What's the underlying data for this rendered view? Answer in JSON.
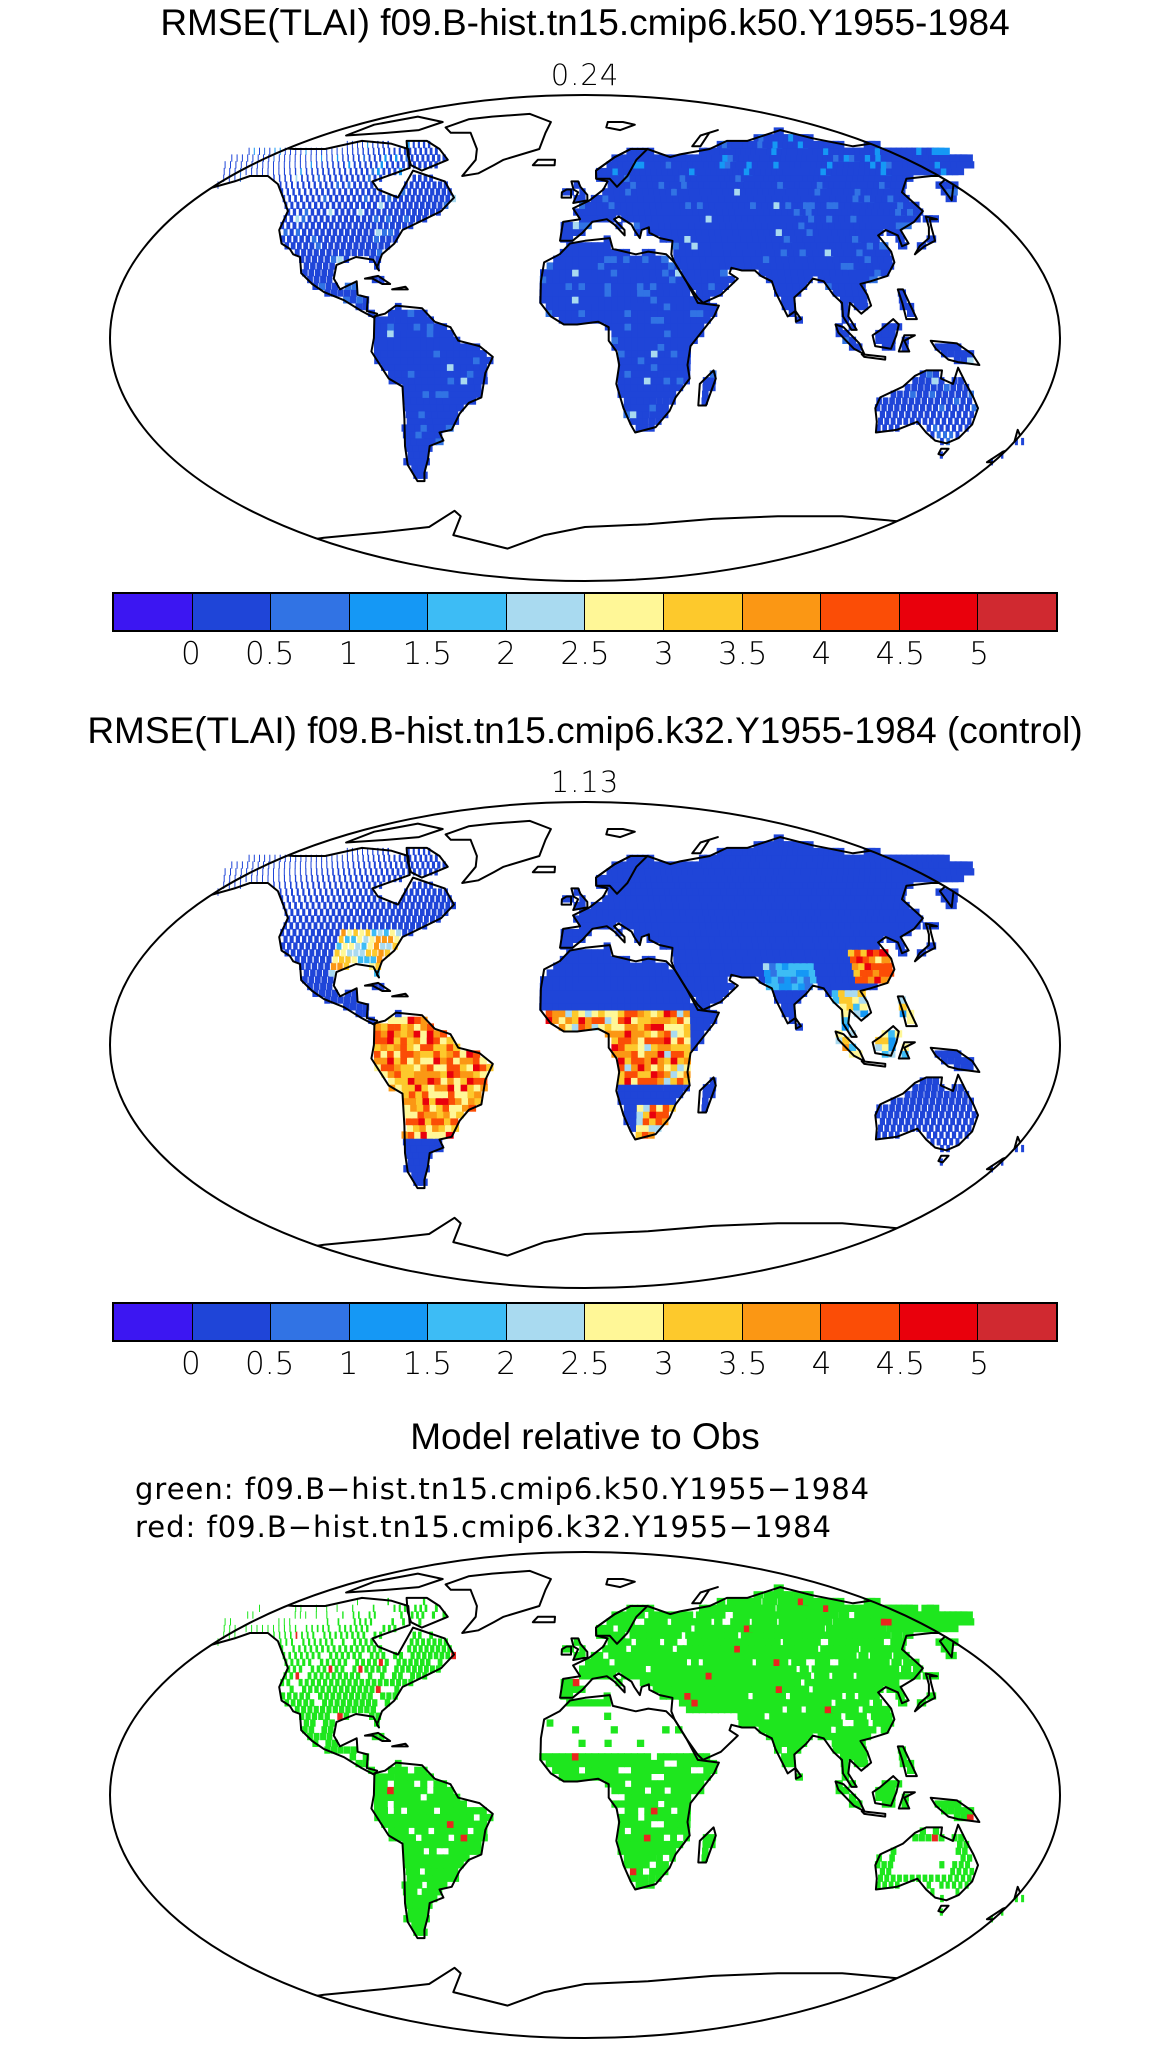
{
  "panels": [
    {
      "title": "RMSE(TLAI) f09.B-hist.tn15.cmip6.k50.Y1955-1984",
      "subtitle": "0.24",
      "field": "mostly-low"
    },
    {
      "title": "RMSE(TLAI) f09.B-hist.tn15.cmip6.k32.Y1955-1984 (control)",
      "subtitle": "1.13",
      "field": "high-tropics"
    }
  ],
  "colorbar": {
    "colors": [
      "#3c16f2",
      "#1f45d8",
      "#3173e4",
      "#1598f5",
      "#3dbcf5",
      "#a9daf0",
      "#fff797",
      "#fdc92c",
      "#fb9714",
      "#fb4d06",
      "#e9000c",
      "#d02930"
    ],
    "tick_labels": [
      "0",
      "0.5",
      "1",
      "1.5",
      "2",
      "2.5",
      "3",
      "3.5",
      "4",
      "4.5",
      "5"
    ]
  },
  "comparison": {
    "title": "Model relative to Obs",
    "legend_green": "green: f09.B−hist.tn15.cmip6.k50.Y1955−1984",
    "legend_red": "red: f09.B−hist.tn15.cmip6.k32.Y1955−1984",
    "colors": {
      "green": "#1ee61e",
      "red": "#e8261e"
    }
  }
}
